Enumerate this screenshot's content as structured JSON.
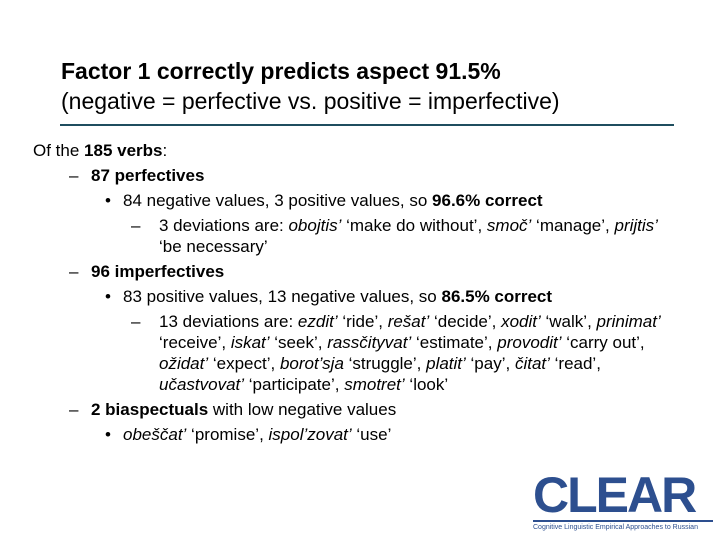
{
  "title": [
    "Factor 1 correctly predicts aspect 91.5%",
    "(negative = perfective vs. positive = imperfective)"
  ],
  "body": [
    [
      "Of the ",
      "185 verbs",
      ":"
    ],
    [
      "87 perfectives"
    ],
    [
      "84 negative values, 3 positive values, so ",
      "96.6% correct"
    ],
    [
      "3 deviations are: ",
      "obojtis’",
      " ‘make do without’, ",
      "smoč’",
      " ‘manage’, ",
      "prijtis’",
      " ‘be necessary’"
    ],
    [
      "96 imperfectives"
    ],
    [
      "83 positive values, 13 negative values, so ",
      "86.5% correct"
    ],
    [
      "13 deviations are: ",
      "ezdit’",
      " ‘ride’, ",
      "rešat’",
      " ‘decide’, ",
      "xodit’",
      " ‘walk’, ",
      "prinimat’",
      " ‘receive’, ",
      "iskat’",
      " ‘seek’, ",
      "rassčityvat’",
      " ‘estimate’, ",
      "provodit’",
      " ‘carry out’, ",
      "ožidat’",
      " ‘expect’, ",
      "borot’sja",
      " ‘struggle’, ",
      "platit’",
      " ‘pay’, ",
      "čitat’",
      " ‘read’, ",
      "učastvovat’",
      " ‘participate’, ",
      "smotret’",
      " ‘look’"
    ],
    [
      "2 biaspectuals",
      " with low negative values"
    ],
    [
      "obeščat’",
      " ‘promise’, ",
      "ispol’zovat’",
      " ‘use’"
    ]
  ],
  "logo": {
    "name": "CLEAR",
    "tagline": "Cognitive Linguistic Empirical Approaches to Russian"
  }
}
